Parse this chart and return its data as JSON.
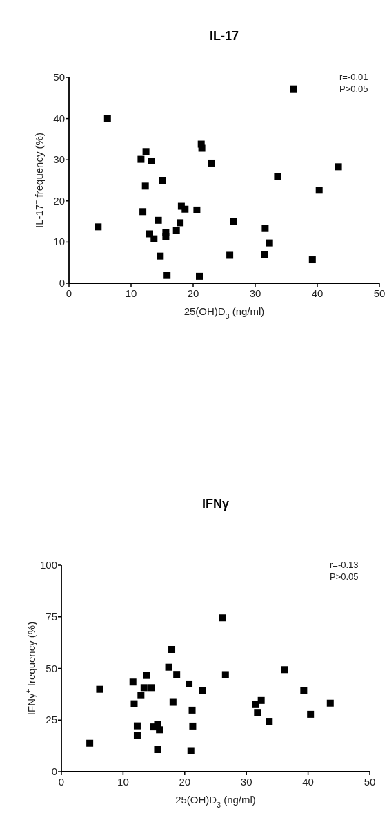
{
  "chart_data": [
    {
      "type": "scatter",
      "title": "IL-17",
      "xlabel": "25(OH)D$_{3}$ (ng/ml)",
      "ylabel": "IL-17$^{+}$ frequency (%)",
      "annotations": [
        "r=-0.01",
        "P>0.05"
      ],
      "marker": "square",
      "xlim": [
        0,
        50
      ],
      "ylim": [
        0,
        50
      ],
      "xticks": [
        0,
        10,
        20,
        30,
        40,
        50
      ],
      "yticks": [
        0,
        10,
        20,
        30,
        40,
        50
      ],
      "series": [
        {
          "color": "#000000",
          "x": [
            4.7,
            6.2,
            11.6,
            12.4,
            13.3,
            12.3,
            11.9,
            15.1,
            14.4,
            13,
            13.7,
            15.6,
            15.6,
            14.7,
            15.8,
            17.3,
            17.9,
            18.1,
            18.7,
            20.6,
            21,
            21.3,
            21.4,
            23,
            25.9,
            26.5,
            31.6,
            31.5,
            32.3,
            33.6,
            36.2,
            39.2,
            40.3,
            43.4
          ],
          "values": [
            13.7,
            40,
            30.1,
            32,
            29.7,
            23.6,
            17.4,
            25,
            15.3,
            12,
            10.8,
            12.4,
            11.4,
            6.6,
            1.9,
            12.8,
            14.7,
            18.7,
            18,
            17.8,
            1.7,
            33.8,
            32.8,
            29.2,
            6.8,
            15,
            13.3,
            6.9,
            9.8,
            26,
            47.2,
            5.7,
            22.6,
            28.3
          ]
        }
      ]
    },
    {
      "type": "scatter",
      "title": "IFNγ",
      "xlabel": "25(OH)D$_{3}$ (ng/ml)",
      "ylabel": "IFNγ$^{+}$ frequency (%)",
      "annotations": [
        "r=-0.13",
        "P>0.05"
      ],
      "marker": "square",
      "xlim": [
        0,
        50
      ],
      "ylim": [
        0,
        100
      ],
      "xticks": [
        0,
        10,
        20,
        30,
        40,
        50
      ],
      "yticks": [
        0,
        25,
        50,
        75,
        100
      ],
      "series": [
        {
          "color": "#000000",
          "x": [
            6.2,
            11.6,
            13.8,
            11.8,
            12.9,
            13.4,
            14.6,
            17.4,
            17.9,
            18.7,
            18.1,
            20.7,
            21.2,
            22.9,
            26.1,
            26.6,
            36.2,
            39.3,
            31.5,
            32.4,
            31.8,
            33.7,
            40.4,
            43.6,
            4.6,
            12.3,
            12.3,
            14.9,
            15.6,
            15.9,
            15.6,
            21.3,
            21
          ],
          "values": [
            39.9,
            43.4,
            46.6,
            32.9,
            36.9,
            40.7,
            40.7,
            50.6,
            59.2,
            47.1,
            33.6,
            42.5,
            29.8,
            39.3,
            74.5,
            47,
            49.4,
            39.3,
            32.5,
            34.5,
            28.7,
            24.4,
            27.8,
            33.2,
            13.8,
            22.2,
            17.7,
            21.7,
            22.8,
            20.3,
            10.7,
            22.1,
            10.2
          ]
        }
      ]
    }
  ]
}
